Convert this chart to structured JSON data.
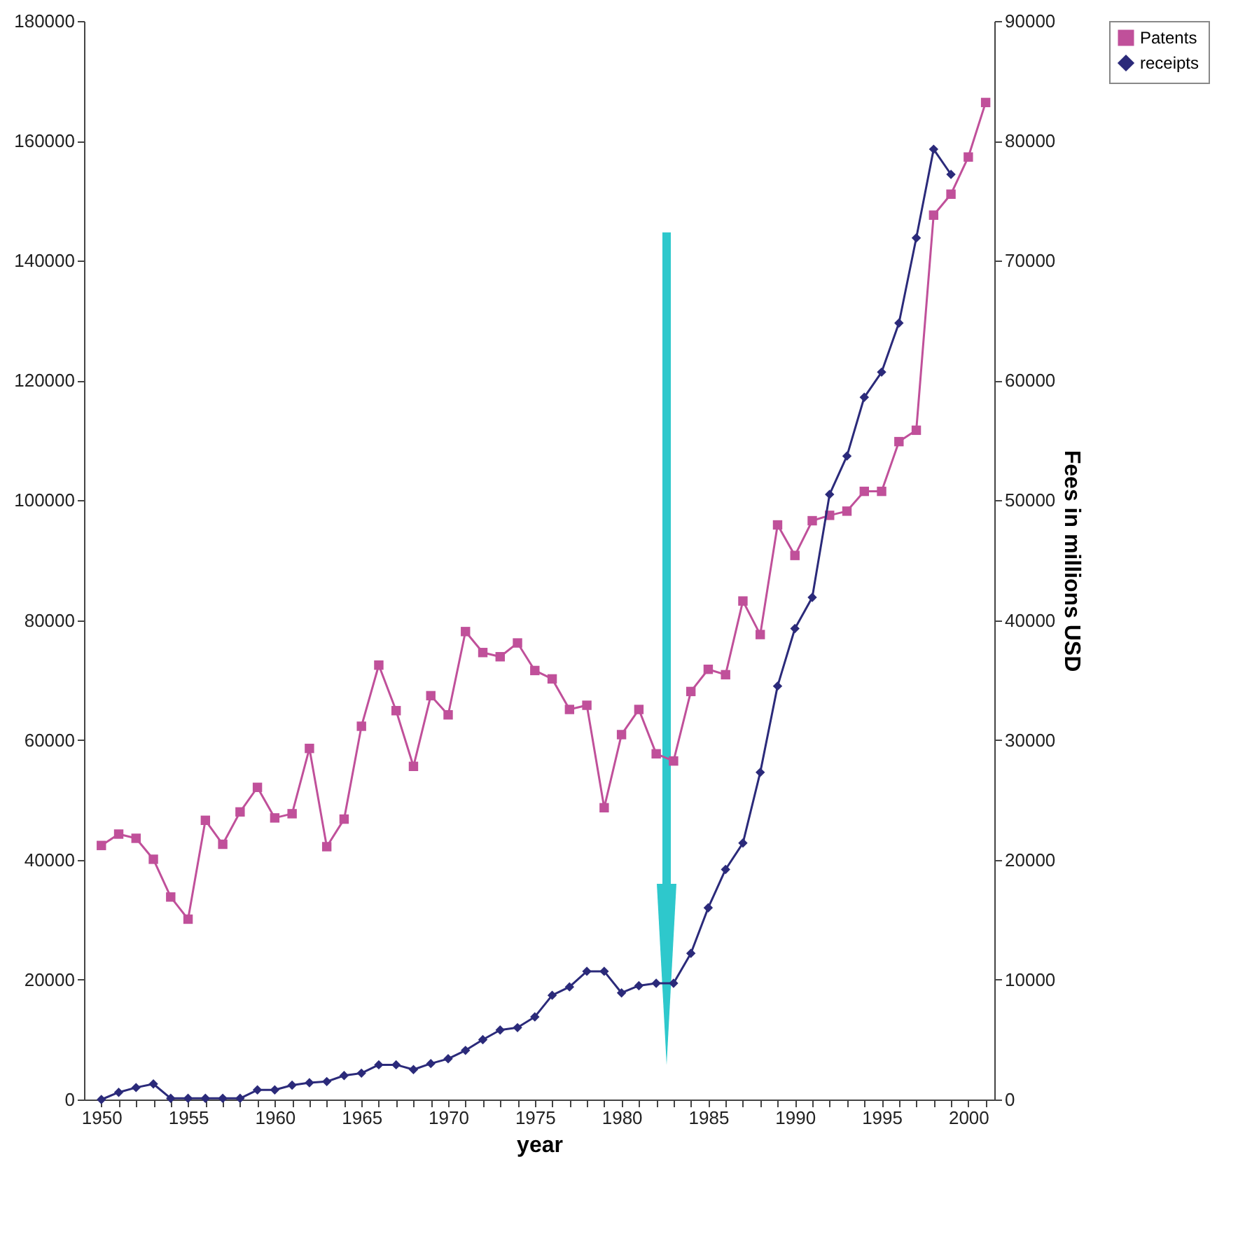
{
  "chart_data": {
    "type": "line",
    "xlabel": "year",
    "y2label": "Fees in millions USD",
    "x": [
      1950,
      1951,
      1952,
      1953,
      1954,
      1955,
      1956,
      1957,
      1958,
      1959,
      1960,
      1961,
      1962,
      1963,
      1964,
      1965,
      1966,
      1967,
      1968,
      1969,
      1970,
      1971,
      1972,
      1973,
      1974,
      1975,
      1976,
      1977,
      1978,
      1979,
      1980,
      1981,
      1982,
      1983,
      1984,
      1985,
      1986,
      1987,
      1988,
      1989,
      1990,
      1991,
      1992,
      1993,
      1994,
      1995,
      1996,
      1997,
      1998,
      1999,
      2000,
      2001
    ],
    "series": [
      {
        "name": "Patents",
        "color": "#c0509a",
        "marker": "square",
        "values": [
          42400,
          44300,
          43600,
          40100,
          33800,
          30100,
          46600,
          42600,
          48000,
          52100,
          47000,
          47700,
          58600,
          42200,
          46800,
          62300,
          72500,
          64900,
          55600,
          67400,
          64200,
          78100,
          74600,
          73900,
          76200,
          71600,
          70200,
          65100,
          65800,
          48700,
          60900,
          65100,
          57700,
          56500,
          68100,
          71800,
          70900,
          83200,
          77600,
          95900,
          90800,
          96600,
          97500,
          98200,
          101500,
          101500,
          109800,
          111700,
          147600,
          151100,
          157300,
          166400
        ]
      },
      {
        "name": "receipts",
        "color": "#2b2a7a",
        "marker": "diamond",
        "axis": "y2",
        "values": [
          0,
          600,
          1000,
          1300,
          100,
          100,
          100,
          100,
          100,
          800,
          800,
          1200,
          1400,
          1500,
          2000,
          2200,
          2900,
          2900,
          2500,
          3000,
          3400,
          4100,
          5000,
          5800,
          6000,
          6900,
          8700,
          9400,
          10700,
          10700,
          8900,
          9500,
          9700,
          9700,
          12200,
          16000,
          19200,
          21400,
          27300,
          34500,
          39300,
          41900,
          50500,
          53700,
          58600,
          60700,
          64800,
          71900,
          79300,
          77200,
          null,
          null
        ]
      }
    ],
    "xlim": [
      1949,
      2001.5
    ],
    "xticks": [
      1950,
      {
        "value": 1951,
        "label": null
      },
      {
        "value": 1952,
        "label": null
      },
      {
        "value": 1953,
        "label": null
      },
      {
        "value": 1954,
        "label": null
      },
      1955,
      {
        "value": 1956,
        "label": null
      },
      {
        "value": 1957,
        "label": null
      },
      {
        "value": 1958,
        "label": null
      },
      {
        "value": 1959,
        "label": null
      },
      1960,
      {
        "value": 1961,
        "label": null
      },
      {
        "value": 1962,
        "label": null
      },
      {
        "value": 1963,
        "label": null
      },
      {
        "value": 1964,
        "label": null
      },
      1965,
      {
        "value": 1966,
        "label": null
      },
      {
        "value": 1967,
        "label": null
      },
      {
        "value": 1968,
        "label": null
      },
      {
        "value": 1969,
        "label": null
      },
      1970,
      {
        "value": 1971,
        "label": null
      },
      {
        "value": 1972,
        "label": null
      },
      {
        "value": 1973,
        "label": null
      },
      {
        "value": 1974,
        "label": null
      },
      1975,
      {
        "value": 1976,
        "label": null
      },
      {
        "value": 1977,
        "label": null
      },
      {
        "value": 1978,
        "label": null
      },
      {
        "value": 1979,
        "label": null
      },
      1980,
      {
        "value": 1981,
        "label": null
      },
      {
        "value": 1982,
        "label": null
      },
      {
        "value": 1983,
        "label": null
      },
      {
        "value": 1984,
        "label": null
      },
      1985,
      {
        "value": 1986,
        "label": null
      },
      {
        "value": 1987,
        "label": null
      },
      {
        "value": 1988,
        "label": null
      },
      {
        "value": 1989,
        "label": null
      },
      1990,
      {
        "value": 1991,
        "label": null
      },
      {
        "value": 1992,
        "label": null
      },
      {
        "value": 1993,
        "label": null
      },
      {
        "value": 1994,
        "label": null
      },
      1995,
      {
        "value": 1996,
        "label": null
      },
      {
        "value": 1997,
        "label": null
      },
      {
        "value": 1998,
        "label": null
      },
      {
        "value": 1999,
        "label": null
      },
      2000,
      {
        "value": 2001,
        "label": null
      }
    ],
    "ylim": [
      0,
      180000
    ],
    "yticks": [
      0,
      20000,
      40000,
      60000,
      80000,
      100000,
      120000,
      140000,
      160000,
      180000
    ],
    "y2lim": [
      0,
      90000
    ],
    "y2ticks": [
      0,
      10000,
      20000,
      30000,
      40000,
      50000,
      60000,
      70000,
      80000,
      90000
    ],
    "grid": false,
    "legend": "right",
    "line_style": "solid"
  }
}
